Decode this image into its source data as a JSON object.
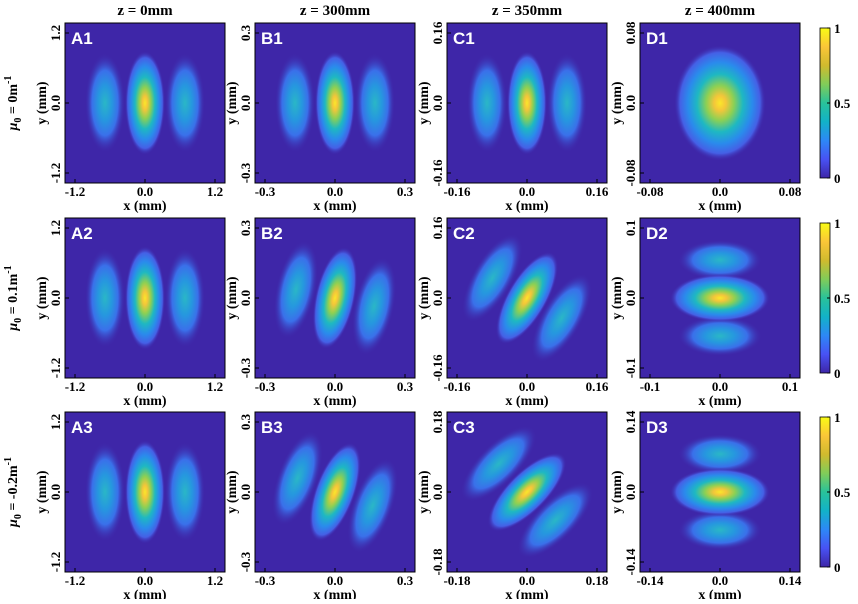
{
  "chart_data": {
    "type": "heatmap",
    "column_titles": [
      "z = 0mm",
      "z = 300mm",
      "z = 350mm",
      "z = 400mm"
    ],
    "row_labels": [
      {
        "base": "μ",
        "sub": "0",
        "mid": " = 0m",
        "sup": "-1"
      },
      {
        "base": "μ",
        "sub": "0",
        "mid": " = 0.1m",
        "sup": "-1"
      },
      {
        "base": "μ",
        "sub": "0",
        "mid": " = -0.2m",
        "sup": "-1"
      }
    ],
    "xlabel": "x (mm)",
    "ylabel": "y (mm)",
    "colorbar": {
      "ticks": [
        "0",
        "0.5",
        "1"
      ],
      "range": [
        0,
        1
      ],
      "colormap": [
        "#3e26a8",
        "#4852f4",
        "#2d88f6",
        "#12b2c8",
        "#29c29a",
        "#81cc59",
        "#d0ba2e",
        "#fac638",
        "#f9fb15"
      ]
    },
    "background_color": "#3e26a8",
    "panels": [
      {
        "label": "A1",
        "xticks": [
          "-1.2",
          "0.0",
          "1.2"
        ],
        "yticks": [
          "1.2",
          "0.0",
          "-1.2"
        ],
        "pattern": "three-lobe",
        "tilt_deg": 0
      },
      {
        "label": "B1",
        "xticks": [
          "-0.3",
          "0.0",
          "0.3"
        ],
        "yticks": [
          "0.3",
          "0.0",
          "-0.3"
        ],
        "pattern": "three-lobe",
        "tilt_deg": 0
      },
      {
        "label": "C1",
        "xticks": [
          "-0.16",
          "0.0",
          "0.16"
        ],
        "yticks": [
          "0.16",
          "0.0",
          "-0.16"
        ],
        "pattern": "three-lobe",
        "tilt_deg": 0
      },
      {
        "label": "D1",
        "xticks": [
          "-0.08",
          "0.0",
          "0.08"
        ],
        "yticks": [
          "0.08",
          "0.0",
          "-0.08"
        ],
        "pattern": "single-spot",
        "tilt_deg": 0
      },
      {
        "label": "A2",
        "xticks": [
          "-1.2",
          "0.0",
          "1.2"
        ],
        "yticks": [
          "1.2",
          "0.0",
          "-1.2"
        ],
        "pattern": "three-lobe",
        "tilt_deg": 0
      },
      {
        "label": "B2",
        "xticks": [
          "-0.3",
          "0.0",
          "0.3"
        ],
        "yticks": [
          "0.3",
          "0.0",
          "-0.3"
        ],
        "pattern": "three-lobe",
        "tilt_deg": 12
      },
      {
        "label": "C2",
        "xticks": [
          "-0.16",
          "0.0",
          "0.16"
        ],
        "yticks": [
          "0.16",
          "0.0",
          "-0.16"
        ],
        "pattern": "three-lobe",
        "tilt_deg": 30
      },
      {
        "label": "D2",
        "xticks": [
          "-0.1",
          "0.0",
          "0.1"
        ],
        "yticks": [
          "0.1",
          "0.0",
          "-0.1"
        ],
        "pattern": "three-lobe",
        "tilt_deg": 90
      },
      {
        "label": "A3",
        "xticks": [
          "-1.2",
          "0.0",
          "1.2"
        ],
        "yticks": [
          "1.2",
          "0.0",
          "-1.2"
        ],
        "pattern": "three-lobe",
        "tilt_deg": 0
      },
      {
        "label": "B3",
        "xticks": [
          "-0.3",
          "0.0",
          "0.3"
        ],
        "yticks": [
          "0.3",
          "0.0",
          "-0.3"
        ],
        "pattern": "three-lobe",
        "tilt_deg": 20
      },
      {
        "label": "C3",
        "xticks": [
          "-0.18",
          "0.0",
          "0.18"
        ],
        "yticks": [
          "0.18",
          "0.0",
          "-0.18"
        ],
        "pattern": "three-lobe",
        "tilt_deg": 45
      },
      {
        "label": "D3",
        "xticks": [
          "-0.14",
          "0.0",
          "0.14"
        ],
        "yticks": [
          "0.14",
          "0.0",
          "-0.14"
        ],
        "pattern": "three-lobe",
        "tilt_deg": 90
      }
    ]
  }
}
